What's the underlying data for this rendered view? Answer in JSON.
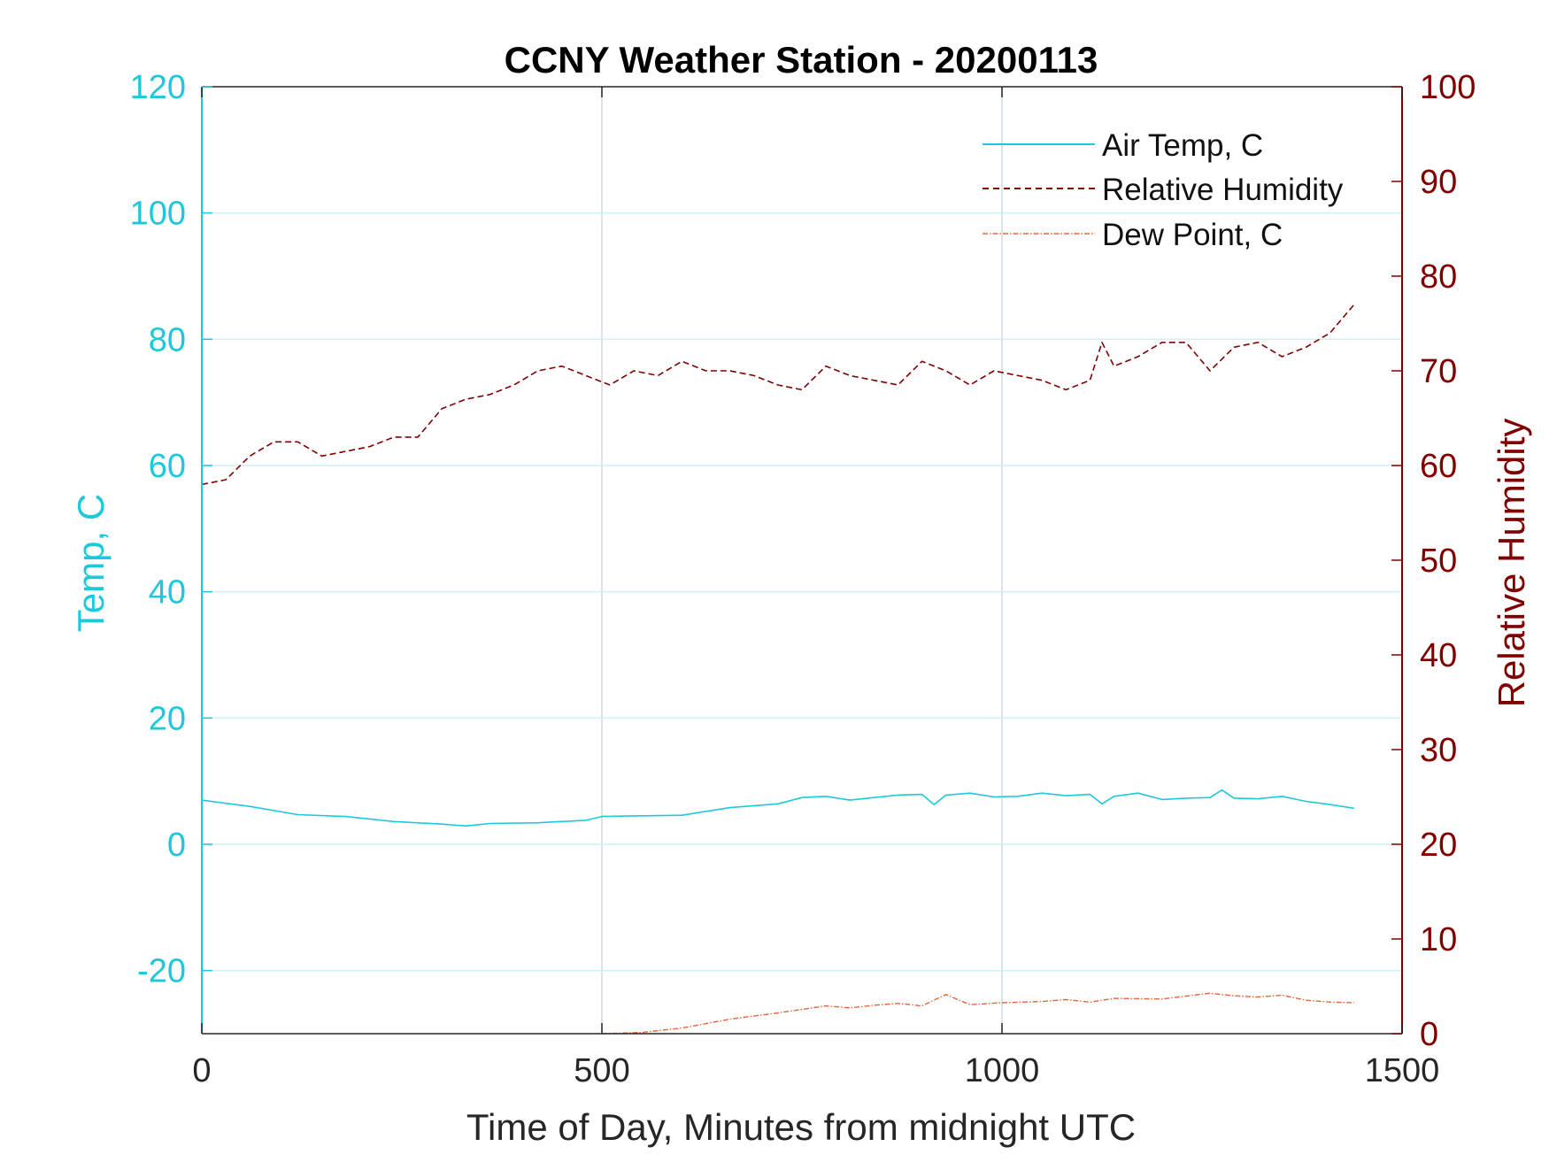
{
  "chart_data": {
    "type": "line",
    "title": "CCNY Weather Station - 20200113",
    "xlabel": "Time of Day, Minutes from midnight UTC",
    "ylabel_left": "Temp, C",
    "ylabel_right": "Relative Humidity",
    "xlim": [
      0,
      1500
    ],
    "ylim_left": [
      -30,
      120
    ],
    "ylim_right": [
      0,
      100
    ],
    "x_ticks": [
      0,
      500,
      1000,
      1500
    ],
    "y_ticks_left": [
      -20,
      0,
      20,
      40,
      60,
      80,
      100,
      120
    ],
    "y_ticks_right": [
      0,
      10,
      20,
      30,
      40,
      50,
      60,
      70,
      80,
      90,
      100
    ],
    "grid": true,
    "legend_position": "top-right",
    "colors": {
      "left_axis": "#1ec8dc",
      "right_axis": "#800000",
      "dew_point": "#e0683a",
      "grid_x": "#d2d8e0",
      "grid_y": "#cdeff5"
    },
    "series": [
      {
        "name": "Air Temp, C",
        "axis": "left",
        "style": "solid",
        "x": [
          0,
          60,
          120,
          180,
          240,
          300,
          330,
          360,
          420,
          480,
          500,
          540,
          600,
          660,
          720,
          750,
          780,
          810,
          840,
          870,
          900,
          915,
          930,
          960,
          990,
          1020,
          1050,
          1080,
          1110,
          1125,
          1140,
          1170,
          1200,
          1230,
          1260,
          1275,
          1290,
          1320,
          1350,
          1380,
          1410,
          1440
        ],
        "values": [
          7.0,
          6.0,
          4.7,
          4.4,
          3.6,
          3.2,
          2.9,
          3.3,
          3.4,
          3.8,
          4.4,
          4.5,
          4.6,
          5.8,
          6.4,
          7.4,
          7.6,
          7.0,
          7.4,
          7.8,
          7.9,
          6.3,
          7.8,
          8.1,
          7.5,
          7.6,
          8.1,
          7.7,
          7.9,
          6.4,
          7.6,
          8.1,
          7.1,
          7.3,
          7.4,
          8.6,
          7.3,
          7.2,
          7.6,
          6.8,
          6.3,
          5.7
        ]
      },
      {
        "name": "Relative Humidity",
        "axis": "right",
        "style": "dashed",
        "x": [
          0,
          30,
          60,
          90,
          120,
          150,
          180,
          210,
          240,
          270,
          300,
          330,
          360,
          390,
          420,
          450,
          480,
          510,
          540,
          570,
          600,
          630,
          660,
          690,
          720,
          750,
          780,
          810,
          840,
          870,
          900,
          930,
          960,
          990,
          1020,
          1050,
          1080,
          1110,
          1125,
          1140,
          1170,
          1200,
          1230,
          1260,
          1290,
          1320,
          1350,
          1380,
          1410,
          1440
        ],
        "values": [
          58,
          58.5,
          61,
          62.5,
          62.5,
          61,
          61.5,
          62,
          63,
          63,
          66,
          67,
          67.5,
          68.5,
          70,
          70.5,
          69.5,
          68.5,
          70,
          69.5,
          71,
          70,
          70,
          69.5,
          68.5,
          68,
          70.5,
          69.5,
          69,
          68.5,
          71,
          70,
          68.5,
          70,
          69.5,
          69,
          68,
          69,
          73,
          70.5,
          71.5,
          73,
          73,
          70,
          72.5,
          73,
          71.5,
          72.5,
          74,
          77
        ]
      },
      {
        "name": "Dew Point, C",
        "axis": "left",
        "style": "dash-dot",
        "x": [
          500,
          550,
          600,
          660,
          720,
          780,
          810,
          840,
          870,
          900,
          930,
          960,
          1000,
          1050,
          1080,
          1110,
          1140,
          1200,
          1260,
          1290,
          1320,
          1350,
          1380,
          1410,
          1440
        ],
        "values": [
          -30,
          -29.8,
          -29.1,
          -27.7,
          -26.7,
          -25.6,
          -25.9,
          -25.5,
          -25.2,
          -25.6,
          -23.8,
          -25.4,
          -25.1,
          -24.9,
          -24.6,
          -25.0,
          -24.4,
          -24.5,
          -23.6,
          -24.0,
          -24.2,
          -23.9,
          -24.7,
          -25.0,
          -25.1
        ]
      }
    ]
  }
}
